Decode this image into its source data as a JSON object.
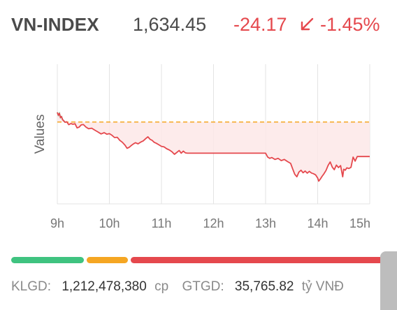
{
  "header": {
    "name": "VN-INDEX",
    "value": "1,634.45",
    "change": "-24.17",
    "change_pct": "-1.45%",
    "arrow_icon": "arrow-down-left-icon",
    "color_down": "#e5484d"
  },
  "chart_data": {
    "type": "line",
    "ylabel": "Values",
    "x_ticks": [
      "9h",
      "10h",
      "11h",
      "12h",
      "13h",
      "14h",
      "15h"
    ],
    "x_tick_hours": [
      9,
      10,
      11,
      12,
      13,
      14,
      15
    ],
    "reference_value": 1658.62,
    "ylim": [
      1600,
      1700
    ],
    "grid": "vertical",
    "series": [
      {
        "line_color": "#e5484d",
        "fill_color": "#fde8e8",
        "opening_color": "#4cc38a",
        "points": [
          [
            9.0,
            1665.5
          ],
          [
            9.02,
            1663.5
          ],
          [
            9.04,
            1664.8
          ],
          [
            9.06,
            1661.8
          ],
          [
            9.08,
            1662.5
          ],
          [
            9.1,
            1660.5
          ],
          [
            9.12,
            1659.6
          ],
          [
            9.15,
            1658.4
          ],
          [
            9.18,
            1658.8
          ],
          [
            9.22,
            1656.7
          ],
          [
            9.26,
            1657.5
          ],
          [
            9.3,
            1657.0
          ],
          [
            9.34,
            1657.4
          ],
          [
            9.38,
            1654.4
          ],
          [
            9.42,
            1655.0
          ],
          [
            9.46,
            1656.6
          ],
          [
            9.5,
            1656.8
          ],
          [
            9.55,
            1655.0
          ],
          [
            9.6,
            1653.8
          ],
          [
            9.66,
            1654.2
          ],
          [
            9.72,
            1652.8
          ],
          [
            9.78,
            1651.5
          ],
          [
            9.84,
            1650.1
          ],
          [
            9.9,
            1651.0
          ],
          [
            9.95,
            1649.9
          ],
          [
            10.0,
            1650.3
          ],
          [
            10.05,
            1649.1
          ],
          [
            10.1,
            1647.5
          ],
          [
            10.15,
            1647.7
          ],
          [
            10.2,
            1645.5
          ],
          [
            10.25,
            1644.1
          ],
          [
            10.3,
            1642.0
          ],
          [
            10.34,
            1639.8
          ],
          [
            10.38,
            1640.5
          ],
          [
            10.42,
            1641.8
          ],
          [
            10.46,
            1642.9
          ],
          [
            10.5,
            1643.8
          ],
          [
            10.55,
            1643.0
          ],
          [
            10.6,
            1644.2
          ],
          [
            10.65,
            1645.1
          ],
          [
            10.7,
            1646.8
          ],
          [
            10.74,
            1648.0
          ],
          [
            10.78,
            1646.3
          ],
          [
            10.82,
            1645.5
          ],
          [
            10.86,
            1644.1
          ],
          [
            10.9,
            1643.4
          ],
          [
            10.95,
            1642.3
          ],
          [
            11.0,
            1641.2
          ],
          [
            11.05,
            1640.8
          ],
          [
            11.1,
            1639.5
          ],
          [
            11.15,
            1638.6
          ],
          [
            11.2,
            1637.4
          ],
          [
            11.25,
            1635.5
          ],
          [
            11.3,
            1637.0
          ],
          [
            11.34,
            1638.2
          ],
          [
            11.38,
            1636.3
          ],
          [
            11.42,
            1637.8
          ],
          [
            11.46,
            1636.5
          ],
          [
            11.5,
            1636.3
          ],
          [
            13.0,
            1636.3
          ],
          [
            13.04,
            1633.5
          ],
          [
            13.08,
            1632.6
          ],
          [
            13.12,
            1633.2
          ],
          [
            13.18,
            1631.8
          ],
          [
            13.24,
            1632.6
          ],
          [
            13.3,
            1631.0
          ],
          [
            13.36,
            1631.8
          ],
          [
            13.42,
            1630.3
          ],
          [
            13.48,
            1629.0
          ],
          [
            13.52,
            1625.1
          ],
          [
            13.56,
            1621.2
          ],
          [
            13.6,
            1619.4
          ],
          [
            13.64,
            1622.8
          ],
          [
            13.68,
            1624.1
          ],
          [
            13.72,
            1622.3
          ],
          [
            13.76,
            1623.5
          ],
          [
            13.8,
            1622.0
          ],
          [
            13.84,
            1623.3
          ],
          [
            13.88,
            1622.1
          ],
          [
            13.92,
            1621.6
          ],
          [
            13.96,
            1620.8
          ],
          [
            14.0,
            1618.5
          ],
          [
            14.02,
            1616.3
          ],
          [
            14.05,
            1617.7
          ],
          [
            14.08,
            1619.5
          ],
          [
            14.12,
            1621.5
          ],
          [
            14.16,
            1623.9
          ],
          [
            14.2,
            1627.5
          ],
          [
            14.24,
            1630.0
          ],
          [
            14.28,
            1626.3
          ],
          [
            14.32,
            1624.5
          ],
          [
            14.36,
            1627.8
          ],
          [
            14.4,
            1626.0
          ],
          [
            14.44,
            1627.4
          ],
          [
            14.48,
            1619.4
          ],
          [
            14.5,
            1624.8
          ],
          [
            14.53,
            1624.1
          ],
          [
            14.56,
            1625.8
          ],
          [
            14.6,
            1625.3
          ],
          [
            14.64,
            1626.2
          ],
          [
            14.68,
            1633.5
          ],
          [
            14.72,
            1630.6
          ],
          [
            14.76,
            1633.9
          ],
          [
            15.0,
            1633.9
          ]
        ]
      }
    ]
  },
  "breadth_bar": {
    "segments": [
      {
        "fraction": 0.198,
        "color": "#3fc380"
      },
      {
        "fraction": 0.113,
        "color": "#f5a623"
      },
      {
        "fraction": 0.689,
        "color": "#e5484d"
      }
    ]
  },
  "footer": {
    "klgd_label": "KLGD:",
    "klgd_value": "1,212,478,380",
    "klgd_unit": "cp",
    "gtgd_label": "GTGD:",
    "gtgd_value": "35,765.82",
    "gtgd_unit": "tỷ VNĐ"
  }
}
